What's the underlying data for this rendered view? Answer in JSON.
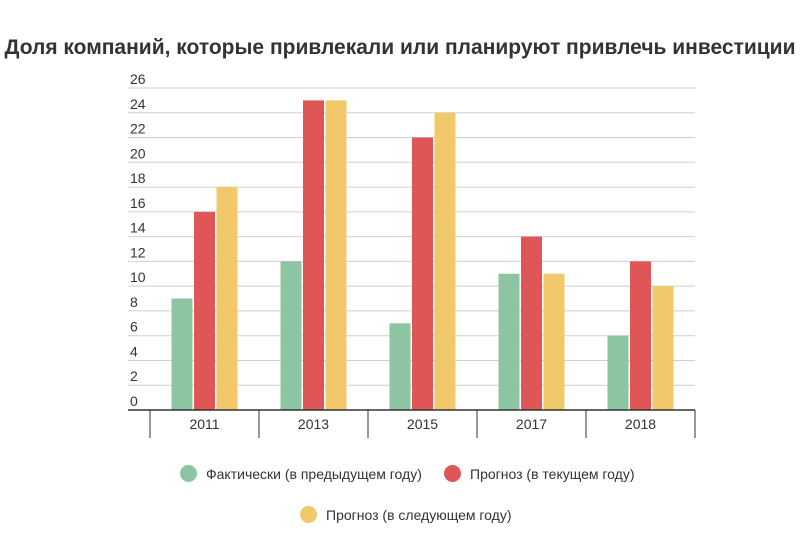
{
  "chart_data": {
    "type": "bar",
    "title": "Доля компаний, которые привлекали или планируют привлечь инвестиции",
    "xlabel": "",
    "ylabel": "",
    "categories": [
      "2011",
      "2013",
      "2015",
      "2017",
      "2018"
    ],
    "ylim": [
      0,
      26
    ],
    "yticks": [
      "0",
      "2",
      "4",
      "6",
      "8",
      "10",
      "12",
      "14",
      "16",
      "18",
      "20",
      "22",
      "24",
      "26"
    ],
    "grid": true,
    "legend_position": "bottom",
    "series": [
      {
        "name": "Фактически (в предыдущем году)",
        "color": "#8dc5a3",
        "values": [
          9,
          12,
          7,
          11,
          6
        ]
      },
      {
        "name": "Прогноз (в текущем году)",
        "color": "#e05555",
        "values": [
          16,
          25,
          22,
          14,
          12
        ]
      },
      {
        "name": "Прогноз (в следующем году)",
        "color": "#f2c96a",
        "values": [
          18,
          25,
          24,
          11,
          10
        ]
      }
    ]
  }
}
